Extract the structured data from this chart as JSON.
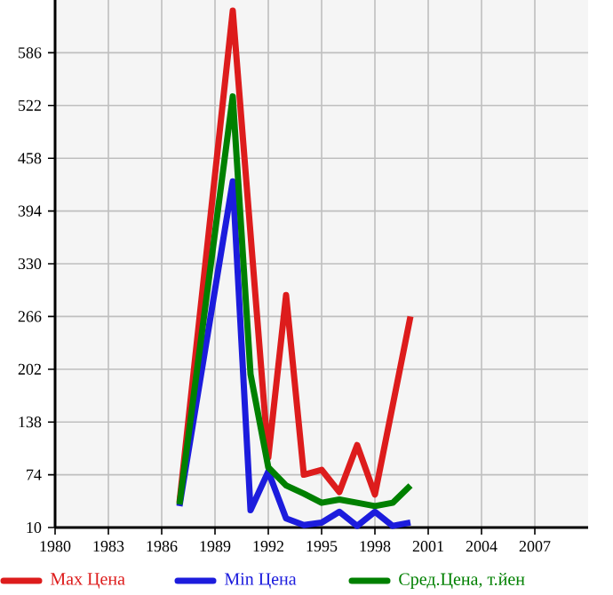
{
  "chart_data": {
    "type": "line",
    "xlim": [
      1980,
      2010
    ],
    "xticks": [
      1980,
      1983,
      1986,
      1989,
      1992,
      1995,
      1998,
      2001,
      2004,
      2007
    ],
    "ylim": [
      10,
      650
    ],
    "yticks": [
      10,
      74,
      138,
      202,
      266,
      330,
      394,
      458,
      522,
      586
    ],
    "grid": true,
    "legend": "bottom",
    "marker": "none",
    "line_style": "solid",
    "series": [
      {
        "name": "Max Цена",
        "color": "#dd1c1c",
        "x": [
          1987,
          1990,
          1992,
          1993,
          1994,
          1995,
          1996,
          1997,
          1998,
          2000
        ],
        "values": [
          40,
          637,
          95,
          292,
          74,
          80,
          53,
          110,
          50,
          266
        ]
      },
      {
        "name": "Min Цена",
        "color": "#1c1cdd",
        "x": [
          1987,
          1990,
          1991,
          1992,
          1993,
          1994,
          1995,
          1996,
          1997,
          1998,
          1999,
          2000
        ],
        "values": [
          36,
          430,
          31,
          78,
          21,
          13,
          16,
          29,
          12,
          29,
          12,
          16
        ]
      },
      {
        "name": "Сред.Цена, т.йен",
        "color": "#008000",
        "x": [
          1987,
          1990,
          1991,
          1992,
          1993,
          1994,
          1995,
          1996,
          1997,
          1998,
          1999,
          2000
        ],
        "values": [
          38,
          533,
          196,
          83,
          61,
          51,
          40,
          44,
          40,
          36,
          40,
          61
        ]
      }
    ]
  }
}
